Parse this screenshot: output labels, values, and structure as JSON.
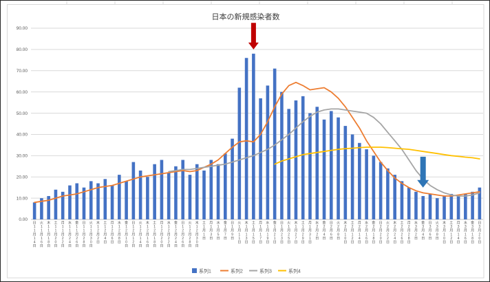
{
  "window": {
    "background": "#ffffff",
    "frame_border_color": "#d9d9d9"
  },
  "chart_data": {
    "type": "combo",
    "title": "日本の新規感染者数",
    "grid": true,
    "legend_position": "bottom",
    "ylim": [
      0,
      90
    ],
    "y_tick_step": 10,
    "y_tick_format": "0.00",
    "gridline_color": "#d9d9d9",
    "axis_label_color": "#595959",
    "categories": [
      "日11月14日",
      "火11月16日",
      "木11月18日",
      "土11月20日",
      "月11月22日",
      "水11月24日",
      "金11月26日",
      "日11月28日",
      "火11月30日",
      "木12月2日",
      "土12月4日",
      "月12月6日",
      "水12月8日",
      "金12月10日",
      "日12月12日",
      "火12月14日",
      "木12月16日",
      "土12月18日",
      "月12月20日",
      "水12月22日",
      "金12月24日",
      "日12月26日",
      "火12月28日",
      "木12月30日",
      "土1月1日",
      "月1月3日",
      "水1月5日",
      "金1月7日",
      "日1月9日",
      "火1月11日",
      "木1月13日",
      "土1月15日",
      "月1月17日",
      "水1月19日",
      "金1月21日",
      "日1月23日",
      "火1月25日",
      "木1月27日",
      "土1月29日",
      "月1月31日",
      "水2月2日",
      "金2月4日",
      "日2月6日",
      "火2月8日",
      "木2月10日",
      "土2月12日",
      "月2月14日",
      "水2月16日",
      "金2月18日",
      "日2月20日",
      "火2月22日",
      "木2月24日",
      "土2月26日",
      "月2月28日",
      "水3月2日",
      "金3月4日",
      "日3月6日",
      "火3月8日",
      "木3月10日",
      "土3月12日",
      "月3月14日",
      "水3月16日",
      "金3月18日",
      "日3月20日"
    ],
    "series": [
      {
        "name": "系列1",
        "type": "bar",
        "color": "#4472C4",
        "values": [
          8,
          10,
          11,
          14,
          13,
          16,
          17,
          15,
          18,
          17,
          19,
          16,
          21,
          18,
          27,
          23,
          20,
          26,
          28,
          22,
          25,
          28,
          21,
          26,
          23,
          28,
          26,
          31,
          38,
          62,
          76,
          78,
          57,
          63,
          71,
          60,
          52,
          56,
          58,
          50,
          53,
          47,
          51,
          48,
          44,
          40,
          36,
          33,
          30,
          27,
          24,
          21,
          18,
          15,
          13,
          11,
          12,
          10,
          11,
          12,
          11,
          12,
          13,
          15
        ]
      },
      {
        "name": "系列2",
        "type": "line",
        "color": "#ED7D31",
        "values": [
          8,
          8.5,
          9,
          10,
          11,
          11.5,
          12,
          13,
          14,
          15,
          15.5,
          16,
          17,
          18,
          19,
          20,
          20.5,
          21,
          21.5,
          22,
          22.5,
          23,
          22.5,
          23,
          24.5,
          26,
          28,
          31,
          34,
          36.5,
          37,
          36.5,
          40,
          46,
          53,
          59,
          63,
          64.5,
          63,
          61,
          61.5,
          62,
          60,
          57,
          53,
          48,
          43,
          37,
          32,
          27,
          23,
          19.5,
          17,
          15,
          13.5,
          12.5,
          12,
          11.5,
          11,
          11,
          11.5,
          12,
          12.5,
          13
        ]
      },
      {
        "name": "系列3",
        "type": "line",
        "color": "#A5A5A5",
        "values": [
          null,
          null,
          null,
          null,
          null,
          null,
          null,
          null,
          null,
          null,
          null,
          null,
          null,
          null,
          null,
          null,
          null,
          null,
          null,
          22.5,
          23,
          23.5,
          23.5,
          24,
          24.5,
          25,
          25.5,
          26,
          27,
          28,
          29,
          30,
          31.5,
          33,
          35,
          37.5,
          40,
          43,
          46,
          48.5,
          50.5,
          51.5,
          52,
          52,
          51.5,
          51,
          50.5,
          50,
          48,
          45,
          41,
          37,
          33,
          28,
          23,
          19,
          16,
          14,
          12.5,
          11.5,
          11,
          11,
          11.5,
          12.5
        ]
      },
      {
        "name": "系列4",
        "type": "line",
        "color": "#FFC000",
        "values": [
          null,
          null,
          null,
          null,
          null,
          null,
          null,
          null,
          null,
          null,
          null,
          null,
          null,
          null,
          null,
          null,
          null,
          null,
          null,
          null,
          null,
          null,
          null,
          null,
          null,
          null,
          null,
          null,
          null,
          null,
          null,
          null,
          null,
          null,
          26,
          27.5,
          28.5,
          29.5,
          30.5,
          31,
          31.5,
          32,
          32.5,
          33,
          33.3,
          33.5,
          33.8,
          34,
          34,
          34,
          33.8,
          33.5,
          33.2,
          33,
          32.5,
          32,
          31.5,
          31,
          30.5,
          30,
          29.7,
          29.3,
          29,
          28.5
        ]
      }
    ],
    "annotations": [
      {
        "name": "red-down-arrow",
        "color": "#C00000",
        "index": 31,
        "tip_value": 80,
        "tail_value": 92.5,
        "shaft_half": 3.5,
        "head_half": 7.5,
        "head_len": 10
      },
      {
        "name": "blue-down-arrow",
        "color": "#2E75B6",
        "index": 55,
        "tip_value": 15,
        "tail_value": 29.5,
        "shaft_half": 4,
        "head_half": 8.5,
        "head_len": 11
      }
    ]
  }
}
